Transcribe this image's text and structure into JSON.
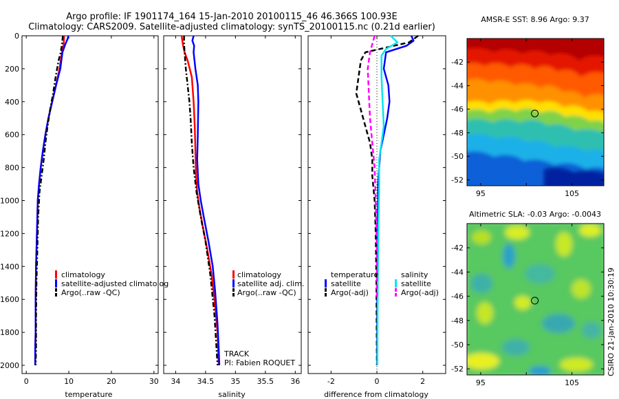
{
  "header": {
    "line1": "Argo profile: IF 1901174_164 15-Jan-2010 20100115_46 46.366S 100.93E",
    "line2": "Climatology: CARS2009. Satellite-adjusted climatology: synTS_20100115.nc (0.21d earlier)"
  },
  "colors": {
    "climatology": "#ff0000",
    "satellite": "#0000ff",
    "argo": "#000000",
    "satellite_salinity": "#00e5ee",
    "argo_salinity": "#ff00ff"
  },
  "chart_data": [
    {
      "type": "line",
      "name_key": "temperature",
      "xlabel": "temperature",
      "ylabel": "",
      "xlim": [
        -1,
        31
      ],
      "ylim": [
        0,
        2050
      ],
      "y_reversed": true,
      "xticks": [
        0,
        10,
        20,
        30
      ],
      "yticks": [
        0,
        200,
        400,
        600,
        800,
        1000,
        1200,
        1400,
        1600,
        1800,
        2000
      ],
      "legend_placement": "middle-left",
      "legend": [
        "climatology",
        "satellite-adjusted climatolog",
        "Argo(..raw -QC)"
      ],
      "series": [
        {
          "name": "climatology",
          "color": "#ff0000",
          "style": "solid",
          "x": [
            8.9,
            8.8,
            8.4,
            7.8,
            7.0,
            6.1,
            5.2,
            4.5,
            3.9,
            3.4,
            3.0,
            2.7,
            2.5,
            2.3,
            2.2,
            2.2,
            2.1,
            2.1
          ],
          "y": [
            0,
            50,
            100,
            200,
            300,
            400,
            500,
            600,
            700,
            800,
            900,
            1000,
            1200,
            1400,
            1600,
            1800,
            1900,
            2000
          ]
        },
        {
          "name": "satellite-adjusted climatolog",
          "color": "#0000ff",
          "style": "solid",
          "x": [
            9.9,
            9.7,
            9.2,
            8.5,
            8.0,
            7.0,
            6.1,
            5.2,
            4.5,
            3.9,
            3.4,
            3.0,
            2.7,
            2.5,
            2.3,
            2.2,
            2.2,
            2.1,
            2.1
          ],
          "y": [
            0,
            20,
            50,
            100,
            200,
            300,
            400,
            500,
            600,
            700,
            800,
            900,
            1000,
            1200,
            1400,
            1600,
            1800,
            1900,
            2000
          ]
        },
        {
          "name": "Argo(..raw -QC)",
          "color": "#000000",
          "style": "dashdot",
          "x": [
            8.6,
            8.4,
            8.1,
            7.6,
            6.9,
            6.3,
            5.6,
            5.0,
            4.5,
            4.1,
            3.6,
            3.1,
            2.8,
            2.6,
            2.4,
            2.3,
            2.3,
            2.2
          ],
          "y": [
            0,
            50,
            100,
            150,
            250,
            350,
            450,
            550,
            650,
            750,
            850,
            950,
            1100,
            1300,
            1500,
            1700,
            1900,
            2000
          ]
        }
      ]
    },
    {
      "type": "line",
      "name_key": "salinity",
      "xlabel": "salinity",
      "ylabel": "",
      "xlim": [
        33.8,
        36.1
      ],
      "ylim": [
        0,
        2050
      ],
      "y_reversed": true,
      "xticks": [
        34,
        34.5,
        35,
        35.5,
        36
      ],
      "yticks": [
        0,
        200,
        400,
        600,
        800,
        1000,
        1200,
        1400,
        1600,
        1800,
        2000
      ],
      "legend_placement": "middle-right",
      "legend": [
        "climatology",
        "satellite adj. clim.",
        "Argo(..raw -QC)"
      ],
      "annotations": [
        "TRACK",
        "PI: Fabien ROQUET"
      ],
      "series": [
        {
          "name": "climatology",
          "color": "#ff0000",
          "style": "solid",
          "x": [
            34.1,
            34.12,
            34.15,
            34.2,
            34.27,
            34.3,
            34.32,
            34.33,
            34.34,
            34.36,
            34.4,
            34.45,
            34.53,
            34.6,
            34.65,
            34.7,
            34.72
          ],
          "y": [
            0,
            50,
            100,
            150,
            250,
            400,
            550,
            700,
            850,
            950,
            1050,
            1150,
            1300,
            1450,
            1600,
            1800,
            2000
          ]
        },
        {
          "name": "satellite adj. clim.",
          "color": "#0000ff",
          "style": "solid",
          "x": [
            34.3,
            34.28,
            34.31,
            34.3,
            34.33,
            34.37,
            34.38,
            34.37,
            34.36,
            34.38,
            34.42,
            34.47,
            34.55,
            34.62,
            34.66,
            34.7,
            34.72,
            34.73
          ],
          "y": [
            0,
            30,
            60,
            100,
            200,
            300,
            400,
            600,
            750,
            900,
            1000,
            1100,
            1250,
            1400,
            1550,
            1750,
            1900,
            2000
          ]
        },
        {
          "name": "Argo(..raw -QC)",
          "color": "#000000",
          "style": "dashdot",
          "x": [
            34.14,
            34.14,
            34.15,
            34.17,
            34.2,
            34.23,
            34.25,
            34.27,
            34.3,
            34.35,
            34.42,
            34.5,
            34.58,
            34.65,
            34.7
          ],
          "y": [
            0,
            50,
            100,
            200,
            300,
            400,
            500,
            650,
            800,
            950,
            1100,
            1250,
            1450,
            1700,
            2000
          ]
        }
      ]
    },
    {
      "type": "line",
      "name_key": "difference",
      "xlabel": "difference from climatology",
      "ylabel": "",
      "xlim": [
        -3,
        3
      ],
      "ylim": [
        0,
        2050
      ],
      "y_reversed": true,
      "xticks": [
        -2,
        0,
        2
      ],
      "yticks": [
        0,
        200,
        400,
        600,
        800,
        1000,
        1200,
        1400,
        1600,
        1800,
        2000
      ],
      "legend_placement": "middle",
      "legend_headers": [
        "temperature",
        "salinity"
      ],
      "legend": [
        "satellite",
        "Argo(-adj)",
        "satellite",
        "Argo(-adj)"
      ],
      "series": [
        {
          "name": "temperature satellite",
          "color": "#0000ff",
          "style": "solid",
          "x": [
            1.5,
            1.6,
            1.3,
            0.4,
            0.3,
            0.5,
            0.55,
            0.45,
            0.3,
            0.15,
            0.1,
            0.05,
            0.05,
            0.02,
            0.02,
            0.01,
            0.01
          ],
          "y": [
            0,
            30,
            60,
            100,
            200,
            300,
            400,
            500,
            600,
            700,
            800,
            900,
            1000,
            1200,
            1400,
            1700,
            2000
          ]
        },
        {
          "name": "temperature Argo(-adj)",
          "color": "#000000",
          "style": "dashed",
          "x": [
            1.8,
            1.4,
            -0.5,
            -0.7,
            -0.8,
            -0.9,
            -0.7,
            -0.5,
            -0.3,
            -0.2,
            -0.2,
            -0.1,
            -0.05,
            -0.02,
            0.0
          ],
          "y": [
            0,
            40,
            100,
            150,
            250,
            350,
            450,
            550,
            650,
            750,
            850,
            1000,
            1200,
            1500,
            2000
          ]
        },
        {
          "name": "salinity satellite",
          "color": "#00e5ee",
          "style": "solid",
          "x": [
            0.6,
            0.9,
            0.4,
            0.2,
            0.2,
            0.25,
            0.3,
            0.2,
            0.1,
            0.1,
            0.08,
            0.06,
            0.05,
            0.04,
            0.03,
            0.02
          ],
          "y": [
            0,
            40,
            80,
            120,
            250,
            400,
            550,
            650,
            750,
            900,
            1050,
            1200,
            1350,
            1500,
            1700,
            2000
          ]
        },
        {
          "name": "salinity Argo(-adj)",
          "color": "#ff00ff",
          "style": "dashed",
          "x": [
            -0.1,
            -0.3,
            -0.4,
            -0.35,
            -0.3,
            -0.2,
            -0.1,
            -0.05,
            0.0,
            0.0
          ],
          "y": [
            0,
            100,
            200,
            350,
            500,
            650,
            800,
            1000,
            1300,
            1600
          ]
        }
      ]
    },
    {
      "type": "heatmap",
      "name_key": "sst",
      "title": "AMSR-E SST: 8.96  Argo: 9.37",
      "xlim": [
        93.5,
        108.5
      ],
      "ylim": [
        -52.5,
        -40
      ],
      "xticks": [
        95,
        100,
        105
      ],
      "xtick_labels": [
        "95",
        "",
        "105"
      ],
      "yticks": [
        -42,
        -44,
        -46,
        -48,
        -50,
        -52
      ],
      "marker": {
        "lon": 100.93,
        "lat": -46.366
      }
    },
    {
      "type": "heatmap",
      "name_key": "sla",
      "title": "Altimetric SLA: -0.03  Argo: -0.0043",
      "xlim": [
        93.5,
        108.5
      ],
      "ylim": [
        -52.5,
        -40
      ],
      "xticks": [
        95,
        100,
        105
      ],
      "xtick_labels": [
        "95",
        "",
        "105"
      ],
      "yticks": [
        -42,
        -44,
        -46,
        -48,
        -50,
        -52
      ],
      "marker": {
        "lon": 100.93,
        "lat": -46.366
      }
    }
  ],
  "footer": {
    "credit": "CSIRO 21-Jan-2010 10:30:19"
  }
}
